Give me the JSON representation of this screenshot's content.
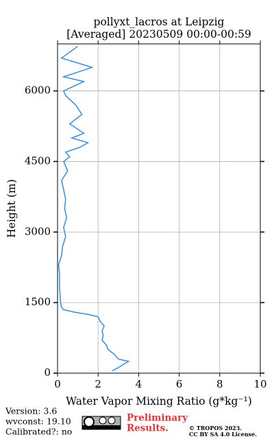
{
  "chart_data": {
    "type": "line",
    "title": [
      "pollyxt_lacros at Leipzig",
      "[Averaged] 20230509 00:00-00:59"
    ],
    "x_label": "Water Vapor Mixing Ratio (g*kg⁻¹)",
    "y_label": "Height (m)",
    "color": "#2a8ff0",
    "x": [
      2.7,
      3.0,
      3.3,
      3.5,
      3.0,
      2.8,
      2.5,
      2.4,
      2.2,
      2.25,
      2.2,
      2.3,
      2.1,
      2.0,
      1.5,
      0.8,
      0.3,
      0.2,
      0.15,
      0.1,
      0.1,
      0.05,
      0.2,
      0.25,
      0.4,
      0.3,
      0.45,
      0.35,
      0.4,
      0.3,
      0.2,
      0.5,
      0.3,
      0.6,
      0.4,
      1.1,
      1.5,
      0.7,
      1.3,
      0.6,
      1.2,
      0.9,
      0.4,
      0.3,
      1.3,
      0.3,
      1.7,
      0.2,
      1.0
    ],
    "y": [
      50,
      120,
      200,
      250,
      300,
      400,
      500,
      600,
      700,
      800,
      900,
      1000,
      1100,
      1200,
      1250,
      1300,
      1350,
      1400,
      1500,
      1800,
      2100,
      2300,
      2500,
      2700,
      2900,
      3100,
      3300,
      3500,
      3700,
      3900,
      4100,
      4300,
      4500,
      4600,
      4700,
      4800,
      4900,
      5000,
      5100,
      5300,
      5500,
      5700,
      5900,
      6000,
      6200,
      6300,
      6500,
      6700,
      6950
    ],
    "xlim": [
      0,
      10
    ],
    "xticks": [
      0,
      2,
      4,
      6,
      8,
      10
    ],
    "ylim": [
      0,
      7000
    ],
    "yticks": [
      0,
      1500,
      3000,
      4500,
      6000
    ],
    "grid": true,
    "footer": {
      "version": "Version: 3.6",
      "wvconst": "wvconst:  19.10",
      "calibrated": "Calibrated?: no",
      "preliminary": [
        "Preliminary",
        "Results."
      ],
      "license": [
        "© TROPOS 2023.",
        "CC BY SA 4.0 License."
      ]
    }
  }
}
